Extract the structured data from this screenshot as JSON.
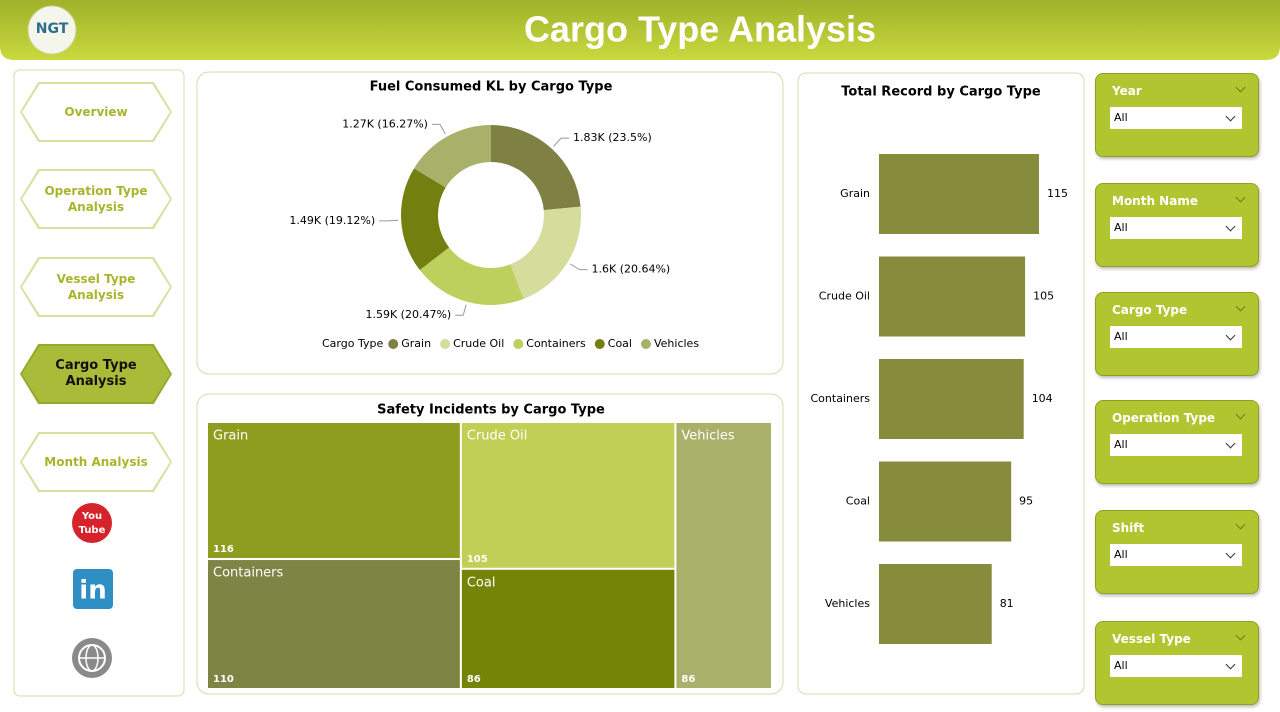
{
  "header": {
    "logo": "NGT",
    "title": "Cargo Type Analysis"
  },
  "nav": [
    "Overview",
    "Operation Type Analysis",
    "Vessel Type Analysis",
    "Cargo Type Analysis",
    "Month Analysis"
  ],
  "social": {
    "youtube": [
      "You",
      "Tube"
    ],
    "linkedin": "in"
  },
  "slicers": [
    {
      "title": "Year",
      "value": "All"
    },
    {
      "title": "Month Name",
      "value": "All"
    },
    {
      "title": "Cargo Type",
      "value": "All"
    },
    {
      "title": "Operation Type",
      "value": "All"
    },
    {
      "title": "Shift",
      "value": "All"
    },
    {
      "title": "Vessel Type",
      "value": "All"
    }
  ],
  "chart_data": [
    {
      "type": "donut",
      "title": "Fuel Consumed KL by Cargo Type",
      "legend_title": "Cargo Type",
      "categories": [
        "Grain",
        "Crude Oil",
        "Containers",
        "Coal",
        "Vehicles"
      ],
      "values": [
        1.83,
        1.6,
        1.59,
        1.49,
        1.27
      ],
      "value_labels": [
        "1.83K (23.5%)",
        "1.6K (20.64%)",
        "1.59K (20.47%)",
        "1.49K (19.12%)",
        "1.27K (16.27%)"
      ],
      "colors": [
        "#7e8143",
        "#d5dc9c",
        "#bdcf5c",
        "#737f0e",
        "#a9b06a"
      ]
    },
    {
      "type": "treemap",
      "title": "Safety Incidents by Cargo Type",
      "categories": [
        "Grain",
        "Crude Oil",
        "Containers",
        "Coal",
        "Vehicles"
      ],
      "values": [
        116,
        105,
        110,
        86,
        86
      ],
      "colors": [
        "#8e9d20",
        "#c2cf56",
        "#7e8443",
        "#758407",
        "#a9b06a"
      ]
    },
    {
      "type": "hbar",
      "title": "Total Record by Cargo Type",
      "categories": [
        "Grain",
        "Crude Oil",
        "Containers",
        "Coal",
        "Vehicles"
      ],
      "values": [
        115,
        105,
        104,
        95,
        81
      ],
      "color": "#868c3b"
    }
  ]
}
